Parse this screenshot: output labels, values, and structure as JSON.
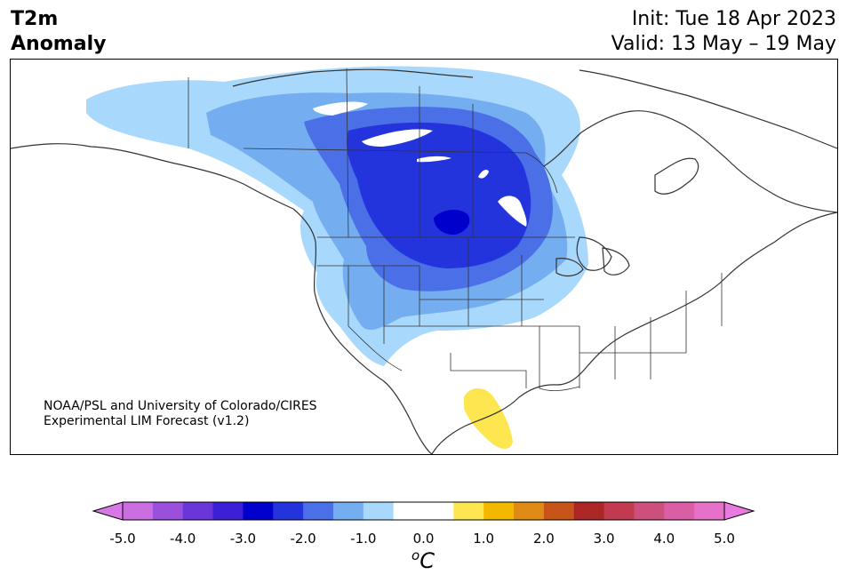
{
  "header": {
    "variable": "T2m",
    "subtitle": "Anomaly",
    "init": "Init: Tue 18 Apr 2023",
    "valid": "Valid: 13 May – 19 May"
  },
  "map": {
    "credit_line1": "NOAA/PSL and University of Colorado/CIRES",
    "credit_line2": "Experimental LIM Forecast (v1.2)"
  },
  "colorbar": {
    "unit_base": "C",
    "unit_sup": "o",
    "ticks": [
      "-5.0",
      "-4.0",
      "-3.0",
      "-2.0",
      "-1.0",
      "0.0",
      "1.0",
      "2.0",
      "3.0",
      "4.0",
      "5.0"
    ],
    "colors": [
      "#c96de0",
      "#9b4fdd",
      "#6a36da",
      "#3b1fd6",
      "#0000cd",
      "#2334dd",
      "#4a6fe6",
      "#75aef0",
      "#a8d8fb",
      "#ffffff",
      "#ffffff",
      "#fde64f",
      "#f2b900",
      "#de8a14",
      "#c75419",
      "#ad2626",
      "#c23a4f",
      "#cd4f7c",
      "#d95ea6",
      "#e572c8"
    ],
    "end_low": "#d878e6",
    "end_high": "#e87ae0"
  }
}
